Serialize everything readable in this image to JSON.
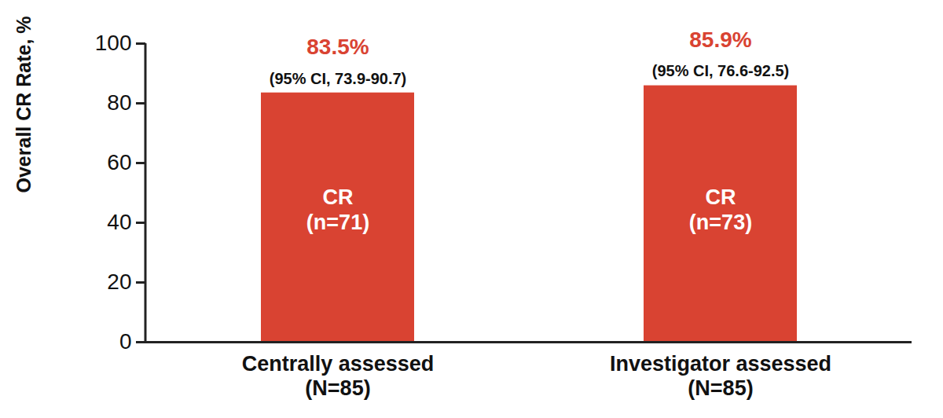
{
  "chart_data": {
    "type": "bar",
    "ylabel": "Overall CR Rate, %",
    "categories": [
      "Centrally assessed\n(N=85)",
      "Investigator assessed\n(N=85)"
    ],
    "values": [
      83.5,
      85.9
    ],
    "value_labels": [
      "83.5%",
      "85.9%"
    ],
    "ci_labels": [
      "(95% CI, 73.9-90.7)",
      "(95% CI, 76.6-92.5)"
    ],
    "bar_labels": [
      "CR\n(n=71)",
      "CR\n(n=73)"
    ],
    "color": "#d94332",
    "ylim": [
      0,
      100
    ],
    "yticks": [
      0,
      20,
      40,
      60,
      80,
      100
    ],
    "grid": false,
    "data_labels": true
  }
}
